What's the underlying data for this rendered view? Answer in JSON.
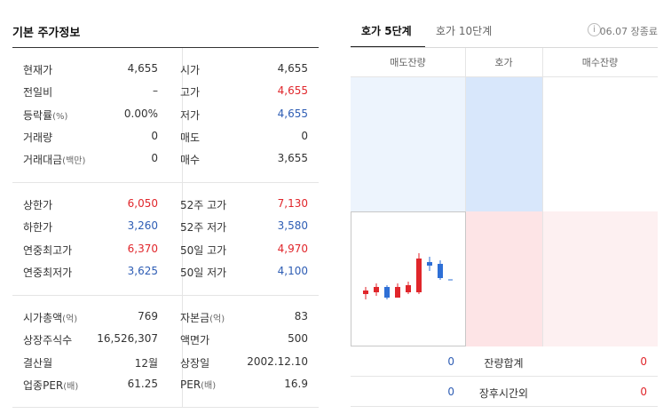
{
  "left": {
    "title": "기본 주가정보",
    "section1": [
      {
        "l1": "현재가",
        "u1": "",
        "v1": "4,655",
        "c1": "",
        "l2": "시가",
        "u2": "",
        "v2": "4,655",
        "c2": ""
      },
      {
        "l1": "전일비",
        "u1": "",
        "v1": "–",
        "c1": "",
        "l2": "고가",
        "u2": "",
        "v2": "4,655",
        "c2": "red"
      },
      {
        "l1": "등락률",
        "u1": "(%)",
        "v1": "0.00%",
        "c1": "",
        "l2": "저가",
        "u2": "",
        "v2": "4,655",
        "c2": "blue"
      },
      {
        "l1": "거래량",
        "u1": "",
        "v1": "0",
        "c1": "",
        "l2": "매도",
        "u2": "",
        "v2": "0",
        "c2": ""
      },
      {
        "l1": "거래대금",
        "u1": "(백만)",
        "v1": "0",
        "c1": "",
        "l2": "매수",
        "u2": "",
        "v2": "3,655",
        "c2": ""
      }
    ],
    "section2": [
      {
        "l1": "상한가",
        "u1": "",
        "v1": "6,050",
        "c1": "red",
        "l2": "52주 고가",
        "u2": "",
        "v2": "7,130",
        "c2": "red"
      },
      {
        "l1": "하한가",
        "u1": "",
        "v1": "3,260",
        "c1": "blue",
        "l2": "52주 저가",
        "u2": "",
        "v2": "3,580",
        "c2": "blue"
      },
      {
        "l1": "연중최고가",
        "u1": "",
        "v1": "6,370",
        "c1": "red",
        "l2": "50일 고가",
        "u2": "",
        "v2": "4,970",
        "c2": "red"
      },
      {
        "l1": "연중최저가",
        "u1": "",
        "v1": "3,625",
        "c1": "blue",
        "l2": "50일 저가",
        "u2": "",
        "v2": "4,100",
        "c2": "blue"
      }
    ],
    "section3": [
      {
        "l1": "시가총액",
        "u1": "(억)",
        "v1": "769",
        "c1": "",
        "l2": "자본금",
        "u2": "(억)",
        "v2": "83",
        "c2": ""
      },
      {
        "l1": "상장주식수",
        "u1": "",
        "v1": "16,526,307",
        "c1": "",
        "l2": "액면가",
        "u2": "",
        "v2": "500",
        "c2": ""
      },
      {
        "l1": "결산월",
        "u1": "",
        "v1": "12월",
        "c1": "",
        "l2": "상장일",
        "u2": "",
        "v2": "2002.12.10",
        "c2": ""
      },
      {
        "l1": "업종PER",
        "u1": "(배)",
        "v1": "61.25",
        "c1": "",
        "l2": "PER",
        "u2": "(배)",
        "v2": "16.9",
        "c2": ""
      }
    ]
  },
  "right": {
    "tab1": "호가 5단계",
    "tab2": "호가 10단계",
    "info_icon": "i",
    "time_text": "06.07 장종료",
    "headers": {
      "ask": "매도잔량",
      "price": "호가",
      "bid": "매수잔량"
    },
    "summary": [
      {
        "left": "0",
        "label": "잔량합계",
        "right": "0"
      },
      {
        "left": "0",
        "label": "장후시간외",
        "right": "0"
      }
    ]
  },
  "colors": {
    "up": "#e0262b",
    "down": "#2e5db4"
  }
}
